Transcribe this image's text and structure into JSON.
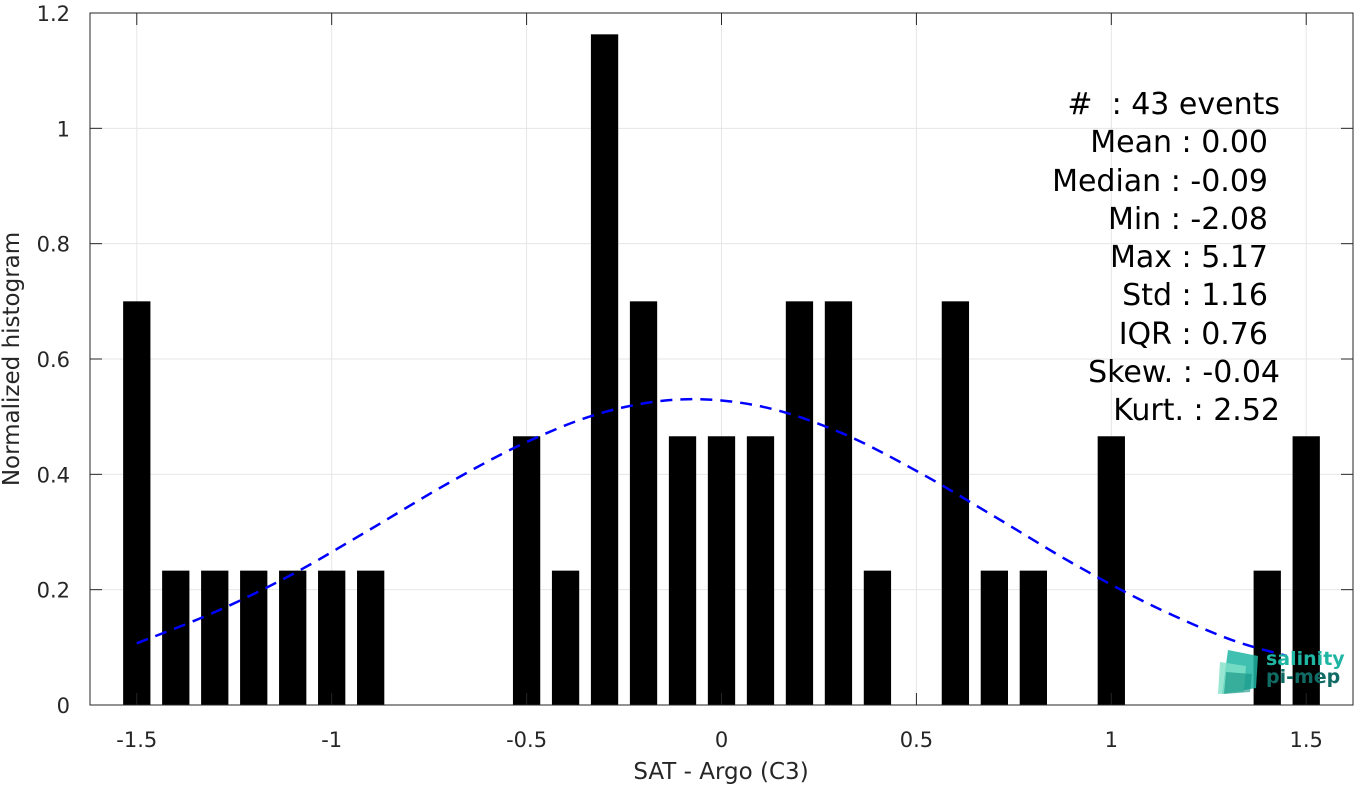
{
  "chart_data": {
    "type": "bar",
    "xlabel": "SAT - Argo (C3)",
    "ylabel": "Normalized histogram",
    "xlim": [
      -1.62,
      1.62
    ],
    "ylim": [
      0,
      1.2
    ],
    "xticks": [
      "-1.5",
      "-1",
      "-0.5",
      "0",
      "0.5",
      "1",
      "1.5"
    ],
    "xtick_values": [
      -1.5,
      -1,
      -0.5,
      0,
      0.5,
      1,
      1.5
    ],
    "yticks": [
      "0",
      "0.2",
      "0.4",
      "0.6",
      "0.8",
      "1",
      "1.2"
    ],
    "ytick_values": [
      0,
      0.2,
      0.4,
      0.6,
      0.8,
      1,
      1.2
    ],
    "grid": true,
    "bar_color": "#000000",
    "bin_width": 0.1,
    "bins": [
      {
        "x": -1.5,
        "y": 0.7
      },
      {
        "x": -1.4,
        "y": 0.233
      },
      {
        "x": -1.3,
        "y": 0.233
      },
      {
        "x": -1.2,
        "y": 0.233
      },
      {
        "x": -1.1,
        "y": 0.233
      },
      {
        "x": -1.0,
        "y": 0.233
      },
      {
        "x": -0.9,
        "y": 0.233
      },
      {
        "x": -0.5,
        "y": 0.466
      },
      {
        "x": -0.4,
        "y": 0.233
      },
      {
        "x": -0.3,
        "y": 1.163
      },
      {
        "x": -0.2,
        "y": 0.7
      },
      {
        "x": -0.1,
        "y": 0.466
      },
      {
        "x": 0.0,
        "y": 0.466
      },
      {
        "x": 0.1,
        "y": 0.466
      },
      {
        "x": 0.2,
        "y": 0.7
      },
      {
        "x": 0.3,
        "y": 0.7
      },
      {
        "x": 0.4,
        "y": 0.233
      },
      {
        "x": 0.6,
        "y": 0.7
      },
      {
        "x": 0.7,
        "y": 0.233
      },
      {
        "x": 0.8,
        "y": 0.233
      },
      {
        "x": 1.0,
        "y": 0.466
      },
      {
        "x": 1.4,
        "y": 0.233
      },
      {
        "x": 1.5,
        "y": 0.466
      }
    ],
    "fit_curve": {
      "style": "dashed",
      "color": "#0000ff",
      "x": [
        -1.5,
        -1.3,
        -1.1,
        -0.9,
        -0.7,
        -0.5,
        -0.3,
        -0.1,
        0.1,
        0.3,
        0.5,
        0.7,
        0.9,
        1.1,
        1.3,
        1.45
      ],
      "y": [
        0.107,
        0.161,
        0.227,
        0.305,
        0.385,
        0.456,
        0.508,
        0.53,
        0.518,
        0.474,
        0.406,
        0.327,
        0.246,
        0.174,
        0.115,
        0.085
      ]
    }
  },
  "stats": [
    {
      "label": "#  : 43 events"
    },
    {
      "label": "Mean : 0.00"
    },
    {
      "label": "Median : -0.09"
    },
    {
      "label": "Min : -2.08"
    },
    {
      "label": "Max : 5.17"
    },
    {
      "label": "Std : 1.16"
    },
    {
      "label": "IQR : 0.76"
    },
    {
      "label": "Skew. : -0.04"
    },
    {
      "label": "Kurt. : 2.52"
    }
  ],
  "logo": {
    "line1": "salinity",
    "line2": "pi-mep",
    "color1": "#1fb5a3",
    "color2": "#0f6b63"
  }
}
